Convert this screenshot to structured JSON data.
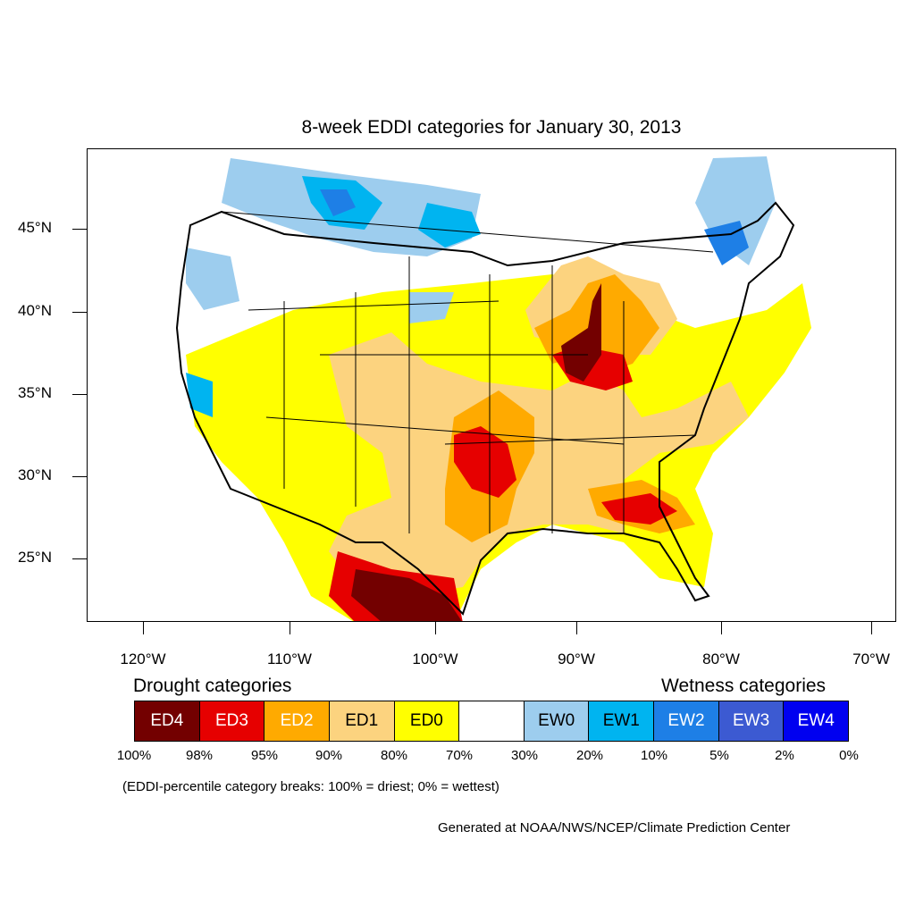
{
  "title": "8-week EDDI categories for January 30, 2013",
  "lat_labels": [
    "45°N",
    "40°N",
    "35°N",
    "30°N",
    "25°N"
  ],
  "lon_labels": [
    "120°W",
    "110°W",
    "100°W",
    "90°W",
    "80°W",
    "70°W"
  ],
  "legend": {
    "drought_title": "Drought categories",
    "wetness_title": "Wetness categories",
    "categories": [
      {
        "label": "ED4",
        "color": "#730000",
        "text_color": "#ffffff"
      },
      {
        "label": "ED3",
        "color": "#e60000",
        "text_color": "#ffffff"
      },
      {
        "label": "ED2",
        "color": "#ffaa00",
        "text_color": "#ffffff"
      },
      {
        "label": "ED1",
        "color": "#fcd37f",
        "text_color": "#000000"
      },
      {
        "label": "ED0",
        "color": "#ffff00",
        "text_color": "#000000"
      },
      {
        "label": "",
        "color": "#ffffff",
        "text_color": "#000000"
      },
      {
        "label": "EW0",
        "color": "#9dcdee",
        "text_color": "#000000"
      },
      {
        "label": "EW1",
        "color": "#00b4f0",
        "text_color": "#000000"
      },
      {
        "label": "EW2",
        "color": "#1e7fe6",
        "text_color": "#ffffff"
      },
      {
        "label": "EW3",
        "color": "#3c5ad2",
        "text_color": "#ffffff"
      },
      {
        "label": "EW4",
        "color": "#0000f0",
        "text_color": "#ffffff"
      }
    ],
    "percentiles": [
      "100%",
      "98%",
      "95%",
      "90%",
      "80%",
      "70%",
      "30%",
      "20%",
      "10%",
      "5%",
      "2%",
      "0%"
    ],
    "note": "(EDDI-percentile category breaks: 100% = driest; 0% = wettest)"
  },
  "credit": "Generated at NOAA/NWS/NCEP/Climate Prediction Center"
}
